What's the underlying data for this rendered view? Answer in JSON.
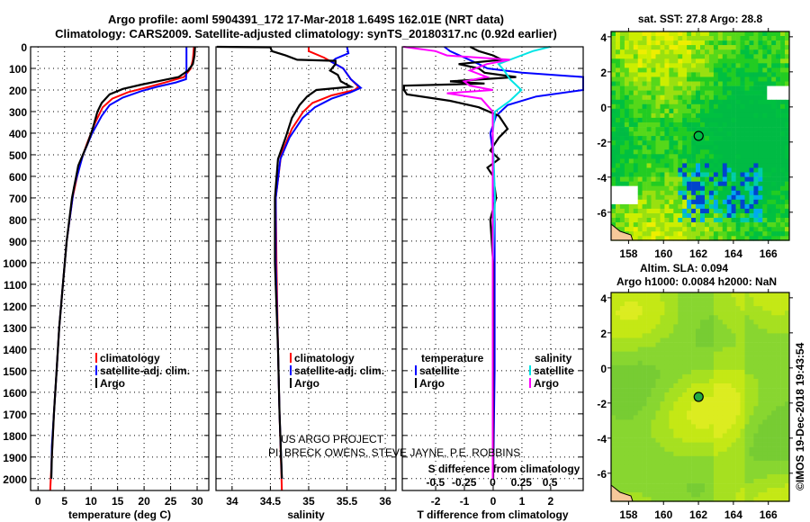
{
  "titles": {
    "line1": "Argo profile: aoml 5904391_172 17-Mar-2018 1.649S 162.01E (NRT data)",
    "line2": "Climatology: CARS2009. Satellite-adjusted climatology: synTS_20180317.nc (0.92d earlier)"
  },
  "colors": {
    "climatology": "#ff0000",
    "satellite": "#0000ff",
    "argo": "#000000",
    "sal_satellite": "#00e5e5",
    "sal_argo": "#ff00ff"
  },
  "credits": {
    "line1": "US ARGO PROJECT",
    "line2": "PI: BRECK OWENS, STEVE JAYNE, P.E. ROBBINS"
  },
  "footer": "©IMOS 19-Dec-2018 19:43:54",
  "chart_data": [
    {
      "type": "line",
      "name": "temperature",
      "xlabel": "temperature (deg C)",
      "ylabel": "depth",
      "xlim": [
        -1.4,
        32.2
      ],
      "ylim": [
        2055,
        0
      ],
      "xticks": [
        "0",
        "5",
        "10",
        "15",
        "20",
        "25",
        "30"
      ],
      "xtick_values": [
        0,
        5,
        10,
        15,
        20,
        25,
        30
      ],
      "yticks": [
        "0",
        "100",
        "200",
        "300",
        "400",
        "500",
        "600",
        "700",
        "800",
        "900",
        "1000",
        "1100",
        "1200",
        "1300",
        "1400",
        "1500",
        "1600",
        "1700",
        "1800",
        "1900",
        "2000"
      ],
      "legend": [
        "climatology",
        "satellite-adj. clim.",
        "Argo"
      ],
      "series": [
        {
          "name": "climatology",
          "color": "#ff0000",
          "points": [
            [
              0,
              29.4
            ],
            [
              60,
              29.2
            ],
            [
              100,
              28.8
            ],
            [
              140,
              27.5
            ],
            [
              165,
              24
            ],
            [
              185,
              21
            ],
            [
              210,
              17
            ],
            [
              240,
              14
            ],
            [
              280,
              12.2
            ],
            [
              350,
              10.8
            ],
            [
              450,
              9.2
            ],
            [
              550,
              7.8
            ],
            [
              700,
              6.5
            ],
            [
              900,
              5.4
            ],
            [
              1100,
              4.7
            ],
            [
              1300,
              4.0
            ],
            [
              1500,
              3.5
            ],
            [
              1700,
              3.0
            ],
            [
              1900,
              2.6
            ],
            [
              2055,
              2.3
            ]
          ]
        },
        {
          "name": "satellite-adj. clim.",
          "color": "#0000ff",
          "points": [
            [
              0,
              28.0
            ],
            [
              100,
              28.0
            ],
            [
              150,
              27.9
            ],
            [
              165,
              26
            ],
            [
              185,
              22.5
            ],
            [
              205,
              19.5
            ],
            [
              235,
              16
            ],
            [
              270,
              13.5
            ],
            [
              320,
              12
            ],
            [
              400,
              10.2
            ],
            [
              500,
              8.5
            ],
            [
              650,
              6.8
            ],
            [
              900,
              5.4
            ],
            [
              1100,
              4.7
            ],
            [
              1300,
              4.0
            ],
            [
              1500,
              3.5
            ],
            [
              1700,
              3.0
            ],
            [
              1850,
              2.6
            ],
            [
              2000,
              2.5
            ]
          ]
        },
        {
          "name": "Argo",
          "color": "#000000",
          "points": [
            [
              0,
              29.6
            ],
            [
              40,
              29.5
            ],
            [
              80,
              29.2
            ],
            [
              110,
              28.3
            ],
            [
              140,
              26.5
            ],
            [
              155,
              23.5
            ],
            [
              175,
              19.5
            ],
            [
              195,
              16
            ],
            [
              220,
              13.5
            ],
            [
              260,
              12
            ],
            [
              300,
              11.2
            ],
            [
              380,
              10.3
            ],
            [
              450,
              9.3
            ],
            [
              550,
              7.6
            ],
            [
              700,
              6.4
            ],
            [
              900,
              5.4
            ],
            [
              1100,
              4.7
            ],
            [
              1300,
              4.0
            ],
            [
              1500,
              3.5
            ],
            [
              1700,
              3.0
            ],
            [
              1900,
              2.6
            ],
            [
              2000,
              2.5
            ]
          ]
        }
      ]
    },
    {
      "type": "line",
      "name": "salinity",
      "xlabel": "salinity",
      "ylabel": "depth",
      "xlim": [
        33.79,
        36.14
      ],
      "ylim": [
        2055,
        0
      ],
      "xticks": [
        "34",
        "34.5",
        "35",
        "35.5",
        "36"
      ],
      "xtick_values": [
        34,
        34.5,
        35,
        35.5,
        36
      ],
      "legend": [
        "climatology",
        "satellite-adj. clim.",
        "Argo"
      ],
      "series": [
        {
          "name": "climatology",
          "color": "#ff0000",
          "points": [
            [
              0,
              35.0
            ],
            [
              20,
              35.0
            ],
            [
              50,
              35.2
            ],
            [
              100,
              35.45
            ],
            [
              150,
              35.55
            ],
            [
              185,
              35.65
            ],
            [
              200,
              35.6
            ],
            [
              225,
              35.3
            ],
            [
              260,
              35.05
            ],
            [
              300,
              34.93
            ],
            [
              380,
              34.78
            ],
            [
              500,
              34.64
            ],
            [
              700,
              34.57
            ],
            [
              1000,
              34.58
            ],
            [
              1400,
              34.6
            ],
            [
              1700,
              34.62
            ],
            [
              2055,
              34.65
            ]
          ]
        },
        {
          "name": "satellite-adj. clim.",
          "color": "#0000ff",
          "points": [
            [
              0,
              35.5
            ],
            [
              30,
              35.52
            ],
            [
              55,
              35.35
            ],
            [
              70,
              35.3
            ],
            [
              100,
              35.45
            ],
            [
              150,
              35.55
            ],
            [
              190,
              35.68
            ],
            [
              210,
              35.55
            ],
            [
              240,
              35.3
            ],
            [
              280,
              35.08
            ],
            [
              330,
              34.92
            ],
            [
              420,
              34.75
            ],
            [
              520,
              34.63
            ],
            [
              700,
              34.57
            ],
            [
              1000,
              34.57
            ],
            [
              1400,
              34.6
            ],
            [
              1700,
              34.62
            ],
            [
              2000,
              34.65
            ]
          ]
        },
        {
          "name": "Argo",
          "color": "#000000",
          "points": [
            [
              0,
              33.8
            ],
            [
              2,
              34.5
            ],
            [
              20,
              34.52
            ],
            [
              40,
              34.7
            ],
            [
              60,
              34.85
            ],
            [
              65,
              35.35
            ],
            [
              80,
              35.35
            ],
            [
              110,
              35.28
            ],
            [
              130,
              35.38
            ],
            [
              160,
              35.42
            ],
            [
              185,
              35.55
            ],
            [
              200,
              35.1
            ],
            [
              230,
              34.98
            ],
            [
              270,
              34.88
            ],
            [
              330,
              34.78
            ],
            [
              420,
              34.7
            ],
            [
              520,
              34.6
            ],
            [
              700,
              34.56
            ],
            [
              1000,
              34.56
            ],
            [
              1400,
              34.6
            ],
            [
              1700,
              34.62
            ],
            [
              2000,
              34.65
            ]
          ]
        }
      ]
    },
    {
      "type": "line",
      "name": "difference",
      "xlabel": "T difference from climatology",
      "x2label": "S difference from climatology",
      "xlim": [
        -3.16,
        3.13
      ],
      "x2lim": [
        -0.79,
        0.79
      ],
      "ylim": [
        2055,
        0
      ],
      "xticks": [
        "-2",
        "-1",
        "0",
        "1",
        "2"
      ],
      "xtick_values": [
        -2,
        -1,
        0,
        1,
        2
      ],
      "x2ticks": [
        "-0.5",
        "-0.25",
        "0",
        "0.25",
        "0.5"
      ],
      "x2tick_values": [
        -0.5,
        -0.25,
        0,
        0.25,
        0.5
      ],
      "legend": {
        "temperature_title": "temperature",
        "salinity_title": "salinity",
        "items": [
          "satellite",
          "Argo",
          "satellite",
          "Argo"
        ]
      },
      "series": [
        {
          "name": "T satellite",
          "axis": "T",
          "color": "#0000ff",
          "points": [
            [
              0,
              -1.7
            ],
            [
              20,
              -1.5
            ],
            [
              50,
              -1.0
            ],
            [
              80,
              -0.5
            ],
            [
              100,
              -0.2
            ],
            [
              120,
              1.0
            ],
            [
              140,
              3.2
            ],
            [
              160,
              3.2
            ],
            [
              200,
              3.2
            ],
            [
              230,
              1.5
            ],
            [
              270,
              0.5
            ],
            [
              320,
              0.1
            ],
            [
              400,
              -0.1
            ],
            [
              500,
              0.0
            ],
            [
              700,
              0.05
            ],
            [
              1000,
              0.05
            ],
            [
              1500,
              0.05
            ],
            [
              2000,
              0.0
            ]
          ]
        },
        {
          "name": "T Argo",
          "axis": "T",
          "color": "#000000",
          "points": [
            [
              0,
              -0.8
            ],
            [
              20,
              -0.5
            ],
            [
              40,
              0
            ],
            [
              60,
              0.3
            ],
            [
              80,
              -1.2
            ],
            [
              100,
              -0.5
            ],
            [
              120,
              -0.3
            ],
            [
              140,
              0.8
            ],
            [
              160,
              -1.5
            ],
            [
              170,
              -0.3
            ],
            [
              180,
              -3.1
            ],
            [
              200,
              -3.1
            ],
            [
              220,
              -3.0
            ],
            [
              250,
              -1.5
            ],
            [
              280,
              -0.5
            ],
            [
              320,
              0.2
            ],
            [
              380,
              0.5
            ],
            [
              420,
              0.2
            ],
            [
              480,
              -0.1
            ],
            [
              520,
              0.2
            ],
            [
              560,
              -0.2
            ],
            [
              600,
              0.0
            ],
            [
              700,
              0.1
            ],
            [
              800,
              -0.1
            ],
            [
              1000,
              0.0
            ],
            [
              1500,
              0.0
            ],
            [
              2000,
              0.0
            ]
          ]
        },
        {
          "name": "S satellite",
          "axis": "S",
          "color": "#00e5e5",
          "points": [
            [
              0,
              0.5
            ],
            [
              20,
              0.35
            ],
            [
              50,
              0.2
            ],
            [
              80,
              0.05
            ],
            [
              110,
              0.1
            ],
            [
              150,
              0.15
            ],
            [
              200,
              0.25
            ],
            [
              250,
              0.15
            ],
            [
              300,
              0.02
            ],
            [
              400,
              0.0
            ],
            [
              700,
              0.02
            ],
            [
              1000,
              0.0
            ],
            [
              1500,
              0.0
            ],
            [
              2000,
              0.0
            ]
          ]
        },
        {
          "name": "S Argo",
          "axis": "S",
          "color": "#ff00ff",
          "points": [
            [
              0,
              -0.78
            ],
            [
              20,
              -0.5
            ],
            [
              40,
              -0.4
            ],
            [
              60,
              0.15
            ],
            [
              80,
              -0.05
            ],
            [
              110,
              -0.2
            ],
            [
              140,
              -0.05
            ],
            [
              160,
              -0.25
            ],
            [
              180,
              -0.2
            ],
            [
              200,
              0.0
            ],
            [
              215,
              -0.4
            ],
            [
              240,
              -0.1
            ],
            [
              270,
              -0.05
            ],
            [
              300,
              0.0
            ],
            [
              500,
              0.0
            ],
            [
              2000,
              0.0
            ]
          ]
        }
      ]
    },
    {
      "type": "heatmap",
      "name": "sst-map",
      "title": "sat. SST: 27.8 Argo: 28.8",
      "xlim": [
        157,
        167.2
      ],
      "ylim": [
        -7.6,
        4.3
      ],
      "xticks": [
        "158",
        "160",
        "162",
        "164",
        "166"
      ],
      "xtick_values": [
        158,
        160,
        162,
        164,
        166
      ],
      "yticks": [
        "4",
        "2",
        "0",
        "-2",
        "-4",
        "-6"
      ],
      "ytick_values": [
        4,
        2,
        0,
        -2,
        -4,
        -6
      ],
      "marker": [
        162.01,
        -1.649
      ]
    },
    {
      "type": "heatmap",
      "name": "sla-map",
      "title": "Altim. SLA: 0.094",
      "subtitle": "Argo h1000: 0.0084 h2000: NaN",
      "xlim": [
        157,
        167.2
      ],
      "ylim": [
        -7.6,
        4.3
      ],
      "xticks": [
        "158",
        "160",
        "162",
        "164",
        "166"
      ],
      "xtick_values": [
        158,
        160,
        162,
        164,
        166
      ],
      "yticks": [
        "4",
        "2",
        "0",
        "-2",
        "-4",
        "-6"
      ],
      "ytick_values": [
        4,
        2,
        0,
        -2,
        -4,
        -6
      ],
      "marker": [
        162.01,
        -1.649
      ]
    }
  ]
}
